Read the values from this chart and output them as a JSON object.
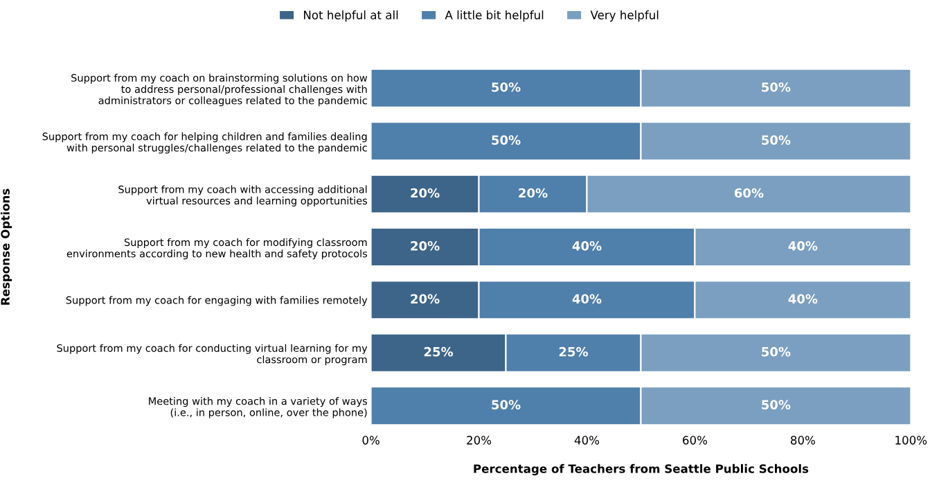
{
  "chart_data": {
    "type": "bar",
    "orientation": "horizontal",
    "stacked": true,
    "categories": [
      "Support from my coach on brainstorming solutions on how\nto address personal/professional challenges with\nadministrators or colleagues related to the pandemic",
      "Support from my coach for helping children and families dealing\nwith personal struggles/challenges related to the pandemic",
      "Support from my coach with accessing additional\nvirtual resources and learning opportunities",
      "Support from my coach for modifying classroom\nenvironments according to new health and safety protocols",
      "Support from my coach for engaging with families remotely",
      "Support from my coach for conducting virtual learning for my\nclassroom or program",
      "Meeting with my coach in a variety of ways\n(i.e., in person, online, over the phone)"
    ],
    "series": [
      {
        "name": "Not helpful at all",
        "color": "#3d6589",
        "values": [
          0,
          0,
          20,
          20,
          20,
          25,
          0
        ],
        "value_labels": [
          null,
          null,
          "20%",
          "20%",
          "20%",
          "25%",
          null
        ]
      },
      {
        "name": "A little bit helpful",
        "color": "#4f7fab",
        "values": [
          50,
          50,
          20,
          40,
          40,
          25,
          50
        ],
        "value_labels": [
          "50%",
          "50%",
          "20%",
          "40%",
          "40%",
          "25%",
          "50%"
        ]
      },
      {
        "name": "Very helpful",
        "color": "#7a9fc0",
        "values": [
          50,
          50,
          60,
          40,
          40,
          50,
          50
        ],
        "value_labels": [
          "50%",
          "50%",
          "60%",
          "40%",
          "40%",
          "50%",
          "50%"
        ]
      }
    ],
    "xlim": [
      0,
      100
    ],
    "xticks": [
      {
        "value": 0,
        "label": "0%"
      },
      {
        "value": 20,
        "label": "20%"
      },
      {
        "value": 40,
        "label": "40%"
      },
      {
        "value": 60,
        "label": "60%"
      },
      {
        "value": 80,
        "label": "80%"
      },
      {
        "value": 100,
        "label": "100%"
      }
    ],
    "xlabel": "Percentage of Teachers from Seattle Public Schools",
    "ylabel": "Response Options",
    "legend": "top",
    "grid": false
  }
}
